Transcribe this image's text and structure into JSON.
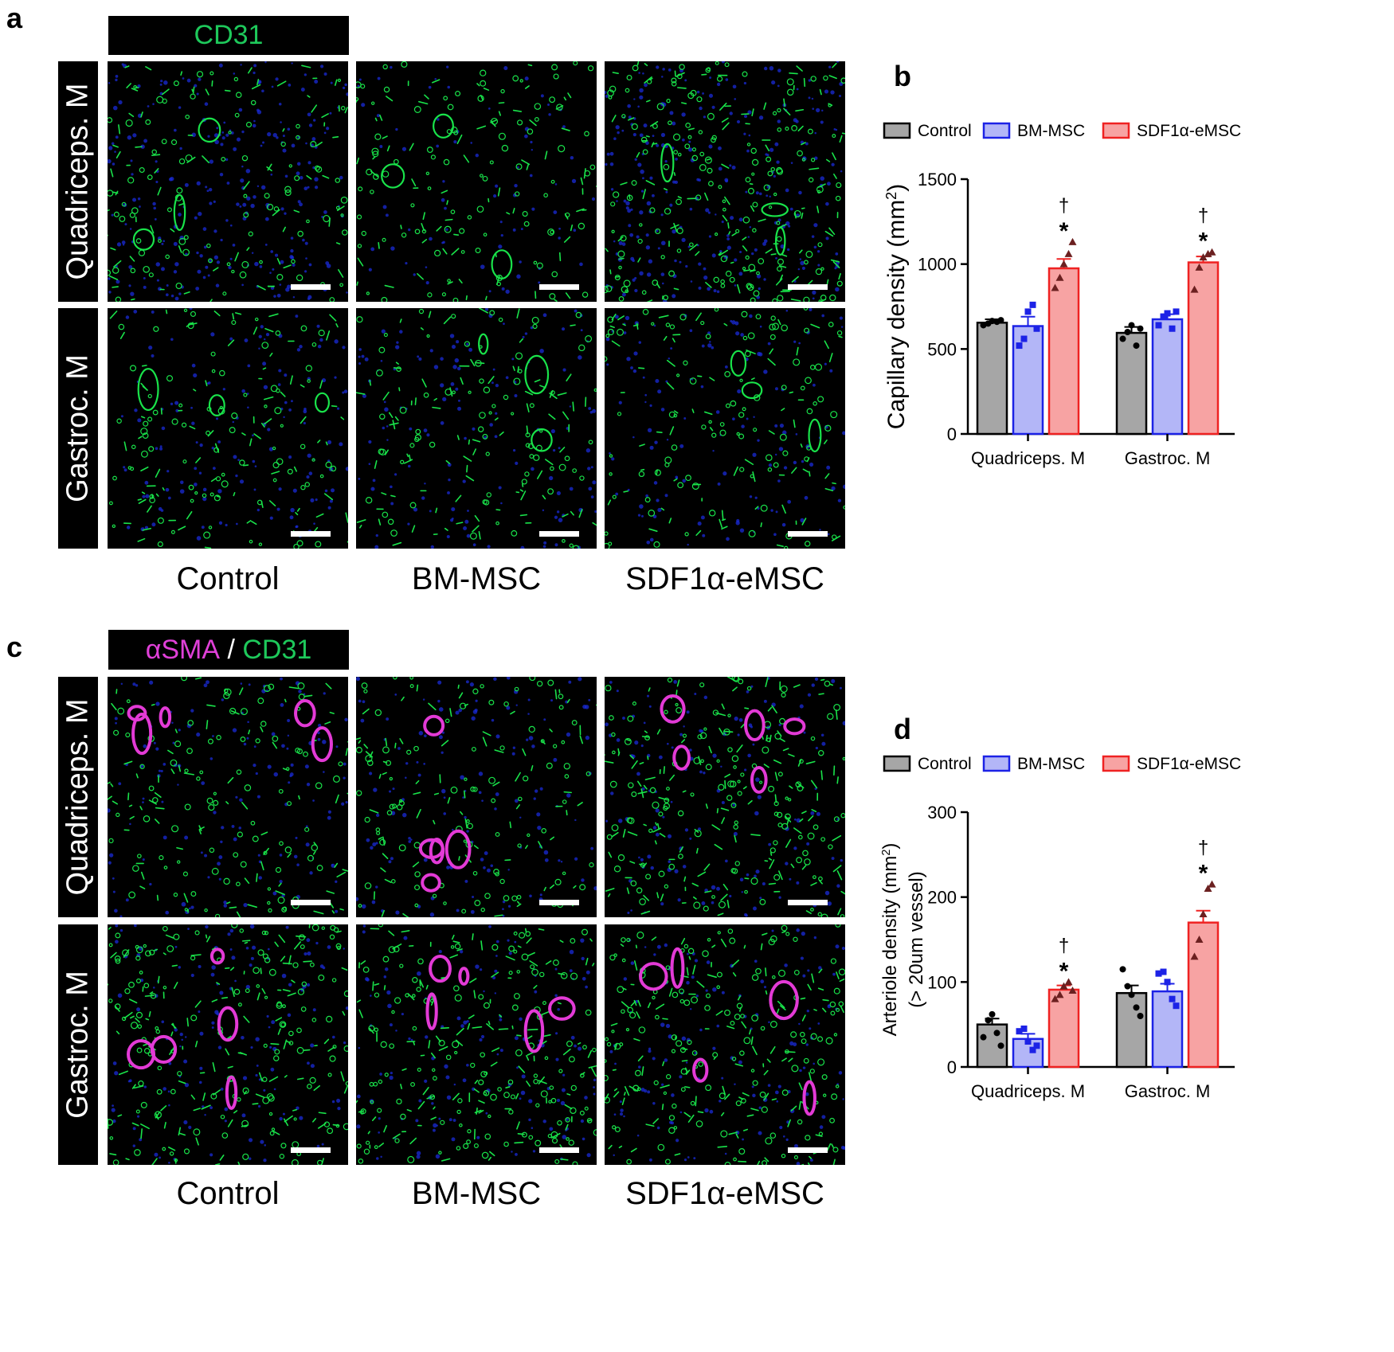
{
  "panels": {
    "a": {
      "letter": "a",
      "stain": [
        {
          "text": "CD31",
          "color": "#1ec95b"
        }
      ],
      "rows": [
        "Quadriceps. M",
        "Gastroc. M"
      ],
      "columns": [
        "Control",
        "BM-MSC",
        "SDF1α-eMSC"
      ]
    },
    "c": {
      "letter": "c",
      "stain": [
        {
          "text": "αSMA",
          "color": "#e040d8"
        },
        {
          "text": " / ",
          "color": "#ffffff"
        },
        {
          "text": "CD31",
          "color": "#1ec95b"
        }
      ],
      "rows": [
        "Quadriceps. M",
        "Gastroc. M"
      ],
      "columns": [
        "Control",
        "BM-MSC",
        "SDF1α-eMSC"
      ]
    }
  },
  "colors": {
    "control_fill": "#a6a6a6",
    "bm_fill": "#b3b6f7",
    "bm_edge": "#1c22e6",
    "sdf_fill": "#f7a3a3",
    "sdf_edge": "#ef2222",
    "green": "#19e34a",
    "blue": "#1a2bd8",
    "magenta": "#e33ad6"
  },
  "chart_data": [
    {
      "panel": "b",
      "type": "bar",
      "ylabel": "Capillary density (mm",
      "ylabel_sup": "2",
      "ylabel_close": ")",
      "ylabel2": "",
      "ylim": [
        0,
        1500
      ],
      "yticks": [
        0,
        500,
        1000,
        1500
      ],
      "categories": [
        "Quadriceps. M",
        "Gastroc. M"
      ],
      "legend": [
        "Control",
        "BM-MSC",
        "SDF1α-eMSC"
      ],
      "legend_position": "top",
      "series": [
        {
          "name": "Control",
          "values": [
            655,
            595
          ],
          "errors": [
            20,
            35
          ],
          "points": [
            [
              640,
              650,
              665,
              660,
              670
            ],
            [
              560,
              600,
              640,
              520,
              620
            ]
          ],
          "marker": "circle"
        },
        {
          "name": "BM-MSC",
          "values": [
            635,
            675
          ],
          "errors": [
            55,
            30
          ],
          "points": [
            [
              520,
              560,
              720,
              760,
              620
            ],
            [
              640,
              690,
              710,
              620,
              720
            ]
          ],
          "marker": "square"
        },
        {
          "name": "SDF1α-eMSC",
          "values": [
            975,
            1010
          ],
          "errors": [
            55,
            35
          ],
          "points": [
            [
              860,
              920,
              1000,
              1060,
              1130
            ],
            [
              850,
              980,
              1040,
              1060,
              1070
            ]
          ],
          "marker": "triangle"
        }
      ],
      "annotations": [
        {
          "category": 0,
          "series": 2,
          "dagger": "†",
          "star": "*"
        },
        {
          "category": 1,
          "series": 2,
          "dagger": "†",
          "star": "*"
        }
      ]
    },
    {
      "panel": "d",
      "type": "bar",
      "ylabel": "Arteriole density (mm",
      "ylabel_sup": "2",
      "ylabel_close": ")",
      "ylabel2": "(> 20um vessel)",
      "ylim": [
        0,
        300
      ],
      "yticks": [
        0,
        100,
        200,
        300
      ],
      "categories": [
        "Quadriceps. M",
        "Gastroc. M"
      ],
      "legend": [
        "Control",
        "BM-MSC",
        "SDF1α-eMSC"
      ],
      "legend_position": "top",
      "series": [
        {
          "name": "Control",
          "values": [
            50,
            87
          ],
          "errors": [
            7,
            9
          ],
          "points": [
            [
              35,
              55,
              62,
              40,
              25
            ],
            [
              115,
              95,
              85,
              70,
              60
            ]
          ],
          "marker": "circle"
        },
        {
          "name": "BM-MSC",
          "values": [
            33,
            89
          ],
          "errors": [
            6,
            9
          ],
          "points": [
            [
              42,
              45,
              30,
              20,
              25
            ],
            [
              110,
              112,
              100,
              80,
              72
            ]
          ],
          "marker": "square"
        },
        {
          "name": "SDF1α-eMSC",
          "values": [
            91,
            170
          ],
          "errors": [
            5,
            14
          ],
          "points": [
            [
              80,
              85,
              95,
              100,
              90
            ],
            [
              130,
              150,
              180,
              210,
              215
            ]
          ],
          "marker": "triangle"
        }
      ],
      "annotations": [
        {
          "category": 0,
          "series": 2,
          "dagger": "†",
          "star": "*"
        },
        {
          "category": 1,
          "series": 2,
          "dagger": "†",
          "star": "*"
        }
      ]
    }
  ]
}
